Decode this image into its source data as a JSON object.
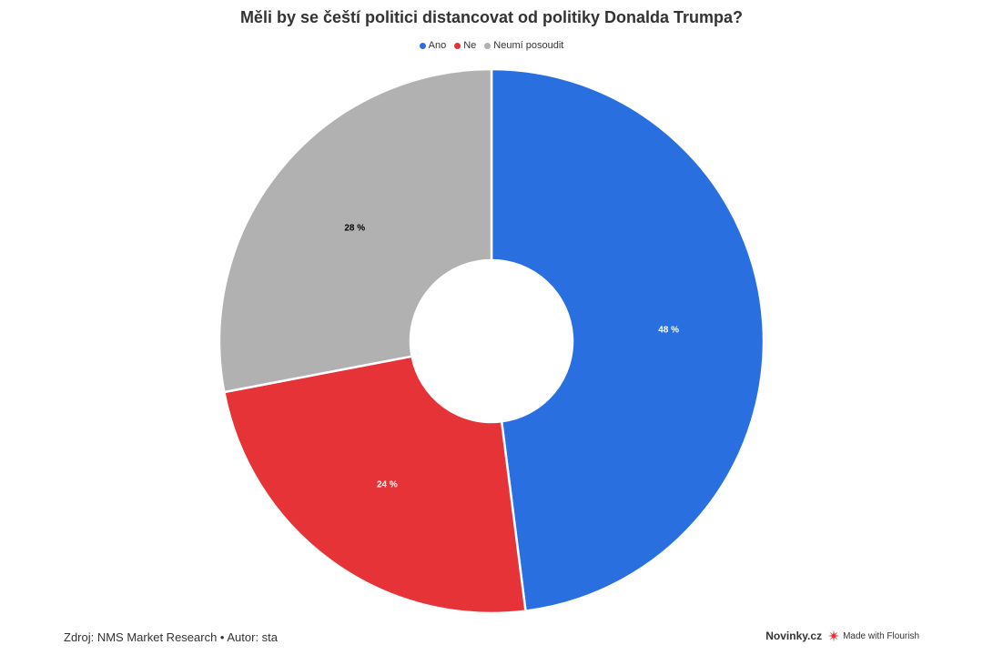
{
  "chart_data": {
    "type": "pie",
    "donut": true,
    "title": "Měli by se čeští politici distancovat od politiky Donalda Trumpa?",
    "legend_position": "top-center",
    "categories": [
      "Ano",
      "Ne",
      "Neumí posoudit"
    ],
    "values": [
      48,
      24,
      28
    ],
    "labels": [
      "48 %",
      "24 %",
      "28 %"
    ],
    "colors": [
      "#2a6fe0",
      "#e63337",
      "#b1b1b1"
    ],
    "label_colors": [
      "#ffffff",
      "#ffffff",
      "#000000"
    ]
  },
  "footer": {
    "source": "Zdroj: NMS Market Research • Autor: sta",
    "brand": "Novinky.cz",
    "made_with": "Made with Flourish"
  }
}
